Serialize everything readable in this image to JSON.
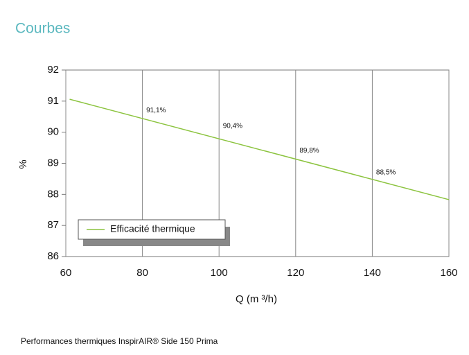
{
  "header": {
    "title": "Courbes"
  },
  "chart_data": {
    "type": "line",
    "x_label": "Q (m ³/h)",
    "y_label": "%",
    "x": [
      61,
      160
    ],
    "series": [
      {
        "name": "Efficacité thermique",
        "color": "#8cc43f",
        "values": [
          91.06,
          87.83
        ]
      }
    ],
    "xlim": [
      60,
      160
    ],
    "xticks": [
      60,
      80,
      100,
      120,
      140,
      160
    ],
    "ylim": [
      86,
      92
    ],
    "yticks": [
      86,
      87,
      88,
      89,
      90,
      91,
      92
    ],
    "grid": "x",
    "legend": "lower left",
    "annotations": [
      {
        "text": "91,1%",
        "x": 81,
        "y": 90.7
      },
      {
        "text": "90,4%",
        "x": 101,
        "y": 90.2
      },
      {
        "text": "89,8%",
        "x": 121,
        "y": 89.4
      },
      {
        "text": "88,5%",
        "x": 141,
        "y": 88.7
      }
    ]
  },
  "footer": {
    "caption": "Performances thermiques InspirAIR® Side 150 Prima"
  }
}
